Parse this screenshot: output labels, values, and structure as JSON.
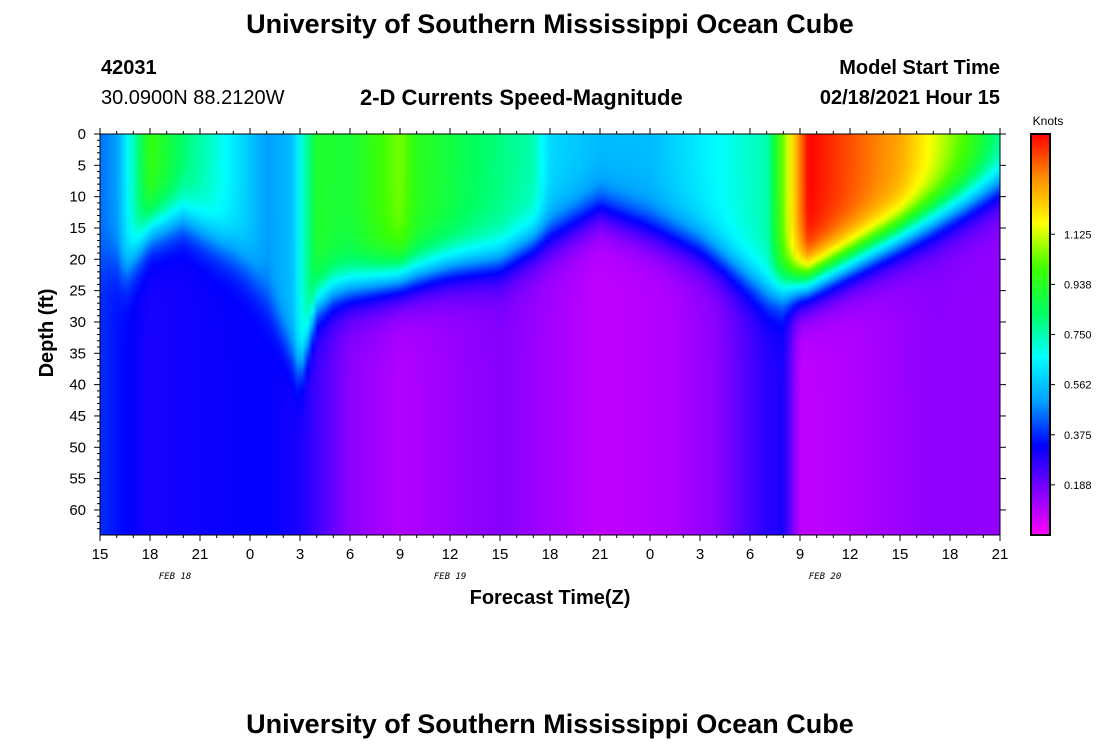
{
  "page": {
    "title_top": "University of Southern Mississippi Ocean Cube",
    "title_bottom": "University of Southern Mississippi Ocean Cube",
    "station_id": "42031",
    "station_coords": "30.0900N 88.2120W",
    "model_start_label": "Model Start Time",
    "model_start_value": "02/18/2021 Hour 15"
  },
  "chart_data": {
    "type": "heatmap",
    "title": "2-D Currents Speed-Magnitude",
    "xlabel": "Forecast Time(Z)",
    "ylabel": "Depth (ft)",
    "x_range_hours": [
      0,
      54
    ],
    "y_range_ft": [
      0,
      64
    ],
    "x_ticks": [
      "15",
      "18",
      "21",
      "0",
      "3",
      "6",
      "9",
      "12",
      "15",
      "18",
      "21",
      "0",
      "3",
      "6",
      "9",
      "12",
      "15",
      "18",
      "21"
    ],
    "x_tick_step_hours": 3,
    "date_labels": [
      {
        "label": "FEB 18",
        "hour": 4.5
      },
      {
        "label": "FEB 19",
        "hour": 21
      },
      {
        "label": "FEB 20",
        "hour": 43.5
      }
    ],
    "y_ticks": [
      0,
      5,
      10,
      15,
      20,
      25,
      30,
      35,
      40,
      45,
      50,
      55,
      60
    ],
    "colorbar": {
      "title": "Knots",
      "range": [
        0,
        1.5
      ],
      "ticks": [
        "0.188",
        "0.375",
        "0.562",
        "0.750",
        "0.938",
        "1.125"
      ],
      "tick_values": [
        0.1875,
        0.375,
        0.5625,
        0.75,
        0.9375,
        1.125
      ],
      "colors": [
        "#ff00ff",
        "#8000ff",
        "#0000ff",
        "#00a0ff",
        "#00ffff",
        "#00ff60",
        "#40ff00",
        "#ffff00",
        "#ff9000",
        "#ff0000"
      ]
    },
    "surface_speed_kn": [
      {
        "hour": 0,
        "value": 0.45
      },
      {
        "hour": 1,
        "value": 0.5
      },
      {
        "hour": 3,
        "value": 0.98
      },
      {
        "hour": 5,
        "value": 0.82
      },
      {
        "hour": 7,
        "value": 0.7
      },
      {
        "hour": 10,
        "value": 0.5
      },
      {
        "hour": 11.5,
        "value": 0.55
      },
      {
        "hour": 13,
        "value": 0.92
      },
      {
        "hour": 15,
        "value": 0.9
      },
      {
        "hour": 18,
        "value": 1.05
      },
      {
        "hour": 19,
        "value": 0.95
      },
      {
        "hour": 22,
        "value": 0.85
      },
      {
        "hour": 26,
        "value": 0.75
      },
      {
        "hour": 27,
        "value": 0.6
      },
      {
        "hour": 30,
        "value": 0.55
      },
      {
        "hour": 33,
        "value": 0.55
      },
      {
        "hour": 40,
        "value": 0.75
      },
      {
        "hour": 42.5,
        "value": 1.5
      },
      {
        "hour": 48,
        "value": 1.3
      },
      {
        "hour": 52,
        "value": 1.0
      },
      {
        "hour": 54,
        "value": 0.8
      }
    ],
    "mixed_layer_depth_ft": [
      {
        "hour": 0,
        "value": 20
      },
      {
        "hour": 1,
        "value": 20
      },
      {
        "hour": 1.5,
        "value": 22
      },
      {
        "hour": 3,
        "value": 15
      },
      {
        "hour": 5,
        "value": 13
      },
      {
        "hour": 7,
        "value": 17
      },
      {
        "hour": 8,
        "value": 19
      },
      {
        "hour": 9,
        "value": 22
      },
      {
        "hour": 10,
        "value": 26
      },
      {
        "hour": 12,
        "value": 38
      },
      {
        "hour": 13,
        "value": 27
      },
      {
        "hour": 14,
        "value": 25
      },
      {
        "hour": 18,
        "value": 23
      },
      {
        "hour": 21,
        "value": 21
      },
      {
        "hour": 24,
        "value": 20
      },
      {
        "hour": 27,
        "value": 16
      },
      {
        "hour": 30,
        "value": 12
      },
      {
        "hour": 33,
        "value": 15
      },
      {
        "hour": 36,
        "value": 18
      },
      {
        "hour": 40,
        "value": 25
      },
      {
        "hour": 42,
        "value": 24
      },
      {
        "hour": 48,
        "value": 16
      },
      {
        "hour": 51,
        "value": 12
      },
      {
        "hour": 54,
        "value": 8
      }
    ],
    "deep_speed_kn": [
      {
        "hour": 0,
        "value": 0.38
      },
      {
        "hour": 1,
        "value": 0.35
      },
      {
        "hour": 3,
        "value": 0.3
      },
      {
        "hour": 7,
        "value": 0.32
      },
      {
        "hour": 10,
        "value": 0.33
      },
      {
        "hour": 12,
        "value": 0.3
      },
      {
        "hour": 15,
        "value": 0.15
      },
      {
        "hour": 18,
        "value": 0.1
      },
      {
        "hour": 24,
        "value": 0.16
      },
      {
        "hour": 30,
        "value": 0.08
      },
      {
        "hour": 34,
        "value": 0.1
      },
      {
        "hour": 37,
        "value": 0.15
      },
      {
        "hour": 40,
        "value": 0.28
      },
      {
        "hour": 41,
        "value": 0.3
      },
      {
        "hour": 42,
        "value": 0.08
      },
      {
        "hour": 45,
        "value": 0.1
      },
      {
        "hour": 50,
        "value": 0.15
      },
      {
        "hour": 54,
        "value": 0.14
      }
    ]
  }
}
